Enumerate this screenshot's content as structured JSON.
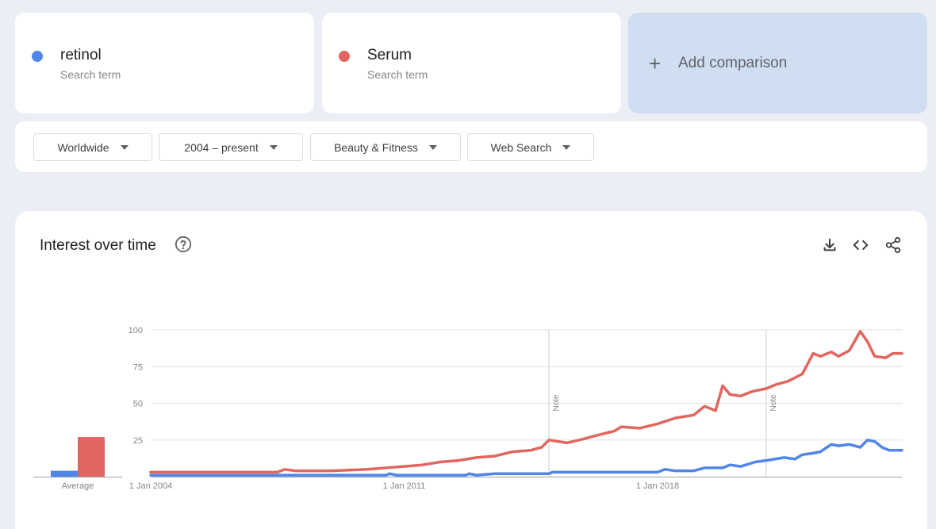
{
  "terms": [
    {
      "name": "retinol",
      "sub": "Search term",
      "color": "#4f86e8"
    },
    {
      "name": "Serum",
      "sub": "Search term",
      "color": "#e0665f"
    }
  ],
  "add_comparison": {
    "label": "Add comparison",
    "icon": "plus-icon"
  },
  "filters": [
    {
      "label": "Worldwide"
    },
    {
      "label": "2004 – present"
    },
    {
      "label": "Beauty & Fitness"
    },
    {
      "label": "Web Search"
    }
  ],
  "panel": {
    "title": "Interest over time",
    "help_icon": "help-circle-icon",
    "tools": [
      "download-icon",
      "embed-code-icon",
      "share-icon"
    ]
  },
  "chart_data": {
    "type": "line",
    "x_ticks": [
      "1 Jan 2004",
      "1 Jan 2011",
      "1 Jan 2018"
    ],
    "y_ticks": [
      100,
      75,
      50,
      25
    ],
    "ylim": [
      0,
      100
    ],
    "xlim": [
      2004,
      2024.75
    ],
    "notes": [
      {
        "x": 2015.0,
        "label": "Note"
      },
      {
        "x": 2021.0,
        "label": "Note"
      }
    ],
    "average_label": "Average",
    "average": {
      "retinol": 4,
      "Serum": 27
    },
    "series": [
      {
        "name": "retinol",
        "color": "#4f86e8",
        "points": [
          [
            2004,
            1
          ],
          [
            2008,
            1
          ],
          [
            2010.5,
            1
          ],
          [
            2010.6,
            2
          ],
          [
            2010.8,
            1
          ],
          [
            2012,
            1
          ],
          [
            2012.7,
            1
          ],
          [
            2012.8,
            2
          ],
          [
            2013,
            1
          ],
          [
            2013.5,
            2
          ],
          [
            2015,
            2
          ],
          [
            2015.1,
            3
          ],
          [
            2016.5,
            3
          ],
          [
            2018,
            3
          ],
          [
            2018.2,
            5
          ],
          [
            2018.5,
            4
          ],
          [
            2019,
            4
          ],
          [
            2019.3,
            6
          ],
          [
            2019.8,
            6
          ],
          [
            2020,
            8
          ],
          [
            2020.3,
            7
          ],
          [
            2020.7,
            10
          ],
          [
            2021,
            11
          ],
          [
            2021.5,
            13
          ],
          [
            2021.8,
            12
          ],
          [
            2022,
            15
          ],
          [
            2022.3,
            16
          ],
          [
            2022.5,
            17
          ],
          [
            2022.8,
            22
          ],
          [
            2023,
            21
          ],
          [
            2023.3,
            22
          ],
          [
            2023.6,
            20
          ],
          [
            2023.8,
            25
          ],
          [
            2024,
            24
          ],
          [
            2024.2,
            20
          ],
          [
            2024.4,
            18
          ],
          [
            2024.75,
            18
          ]
        ]
      },
      {
        "name": "Serum",
        "color": "#e0665f",
        "points": [
          [
            2004,
            3
          ],
          [
            2006,
            3
          ],
          [
            2007.5,
            3
          ],
          [
            2007.7,
            5
          ],
          [
            2008,
            4
          ],
          [
            2009,
            4
          ],
          [
            2010,
            5
          ],
          [
            2010.5,
            6
          ],
          [
            2011,
            7
          ],
          [
            2011.5,
            8
          ],
          [
            2012,
            10
          ],
          [
            2012.5,
            11
          ],
          [
            2013,
            13
          ],
          [
            2013.5,
            14
          ],
          [
            2014,
            17
          ],
          [
            2014.5,
            18
          ],
          [
            2014.8,
            20
          ],
          [
            2015,
            25
          ],
          [
            2015.5,
            23
          ],
          [
            2016,
            26
          ],
          [
            2016.3,
            28
          ],
          [
            2016.8,
            31
          ],
          [
            2017,
            34
          ],
          [
            2017.5,
            33
          ],
          [
            2018,
            36
          ],
          [
            2018.5,
            40
          ],
          [
            2019,
            42
          ],
          [
            2019.3,
            48
          ],
          [
            2019.6,
            45
          ],
          [
            2019.8,
            62
          ],
          [
            2020,
            56
          ],
          [
            2020.3,
            55
          ],
          [
            2020.6,
            58
          ],
          [
            2021,
            60
          ],
          [
            2021.3,
            63
          ],
          [
            2021.6,
            65
          ],
          [
            2022,
            70
          ],
          [
            2022.3,
            84
          ],
          [
            2022.5,
            82
          ],
          [
            2022.8,
            85
          ],
          [
            2023,
            82
          ],
          [
            2023.3,
            86
          ],
          [
            2023.6,
            99
          ],
          [
            2023.8,
            92
          ],
          [
            2024,
            82
          ],
          [
            2024.3,
            81
          ],
          [
            2024.5,
            84
          ],
          [
            2024.75,
            84
          ]
        ]
      }
    ]
  }
}
